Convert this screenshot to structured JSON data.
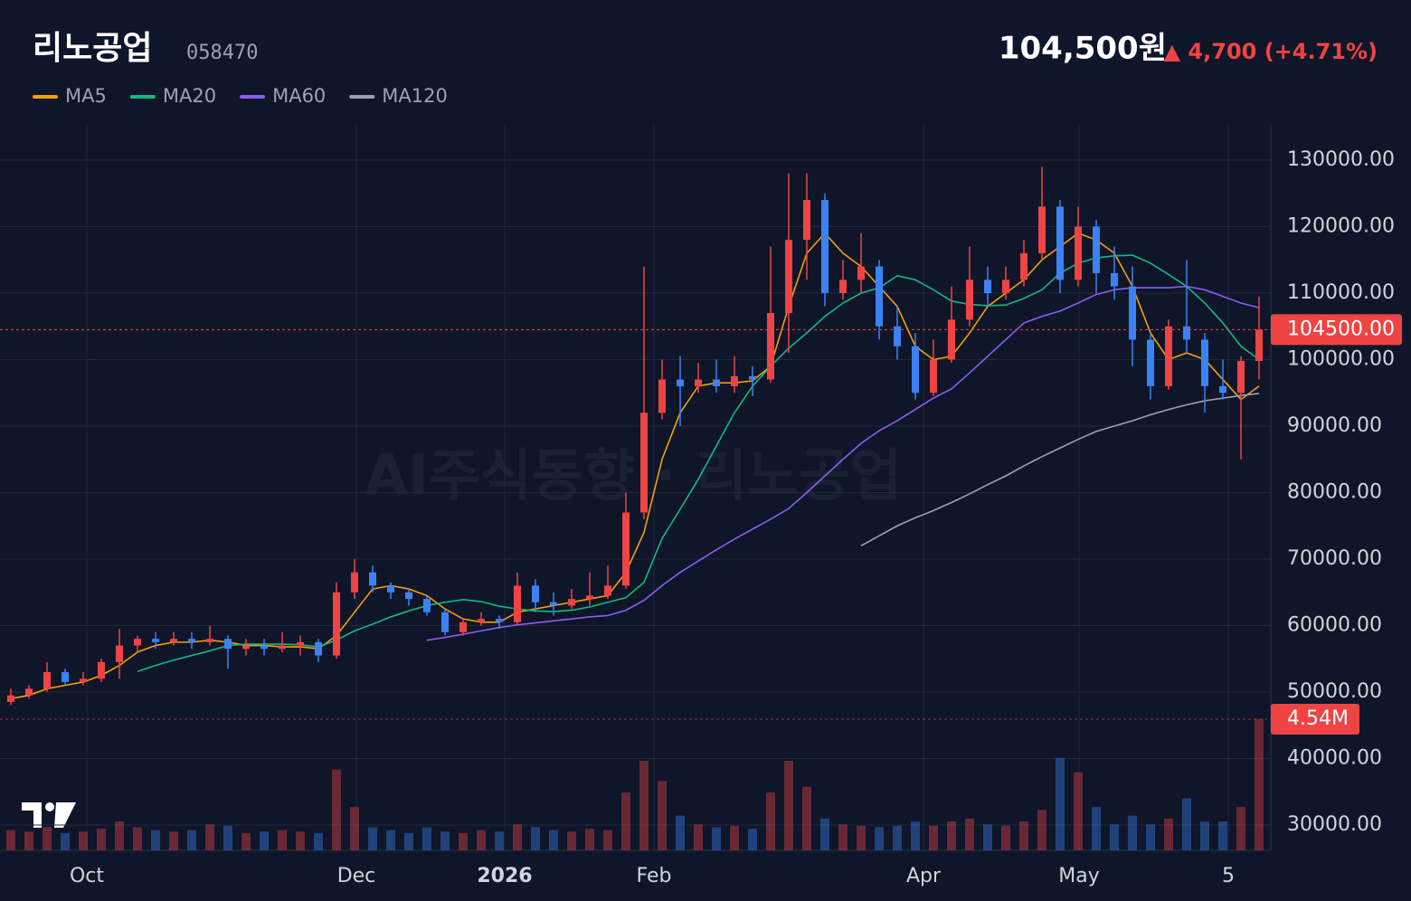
{
  "header": {
    "title": "리노공업",
    "code": "058470",
    "price": "104,500원",
    "change": "▲ 4,700 (+4.71%)"
  },
  "watermark": "AI주식동향 · 리노공업",
  "chart_data": {
    "type": "candlestick",
    "up_color": "#ef4444",
    "down_color": "#3b82f6",
    "open": [
      48500,
      49500,
      50500,
      53000,
      51500,
      52000,
      54500,
      57000,
      58000,
      57500,
      58000,
      57500,
      58000,
      56500,
      57000,
      56500,
      57000,
      57500,
      55500,
      65000,
      68000,
      66000,
      65000,
      64000,
      62000,
      59000,
      60500,
      61000,
      60500,
      66000,
      63500,
      63000,
      64000,
      64500,
      66000,
      77000,
      92000,
      97000,
      96000,
      97000,
      96000,
      97500,
      97000,
      107000,
      118000,
      124000,
      110000,
      112000,
      114000,
      105000,
      102000,
      95000,
      100000,
      106000,
      112000,
      110000,
      112000,
      116000,
      123000,
      112000,
      120000,
      113000,
      111000,
      103000,
      96000,
      105000,
      103000,
      96000,
      95000,
      99800
    ],
    "high": [
      50500,
      51000,
      54500,
      53500,
      53000,
      55000,
      59500,
      58500,
      59000,
      59000,
      59000,
      60000,
      58500,
      58000,
      58000,
      59000,
      58500,
      58000,
      66500,
      70000,
      69000,
      66500,
      65500,
      64500,
      62500,
      61000,
      62000,
      61500,
      68000,
      67000,
      65000,
      65500,
      68000,
      69000,
      80000,
      114000,
      100000,
      100500,
      99500,
      100000,
      100500,
      99000,
      117000,
      128000,
      128000,
      125000,
      115000,
      119000,
      115000,
      108000,
      104000,
      103000,
      111000,
      117000,
      114000,
      114000,
      118000,
      129000,
      124000,
      123000,
      121000,
      117000,
      114000,
      104000,
      106000,
      115000,
      104000,
      100000,
      100500,
      109500
    ],
    "low": [
      48000,
      49000,
      50000,
      51000,
      51000,
      51500,
      52000,
      56000,
      56500,
      57000,
      56500,
      57000,
      53500,
      55500,
      55500,
      56000,
      55500,
      54500,
      55000,
      64000,
      65000,
      64000,
      63000,
      61500,
      58500,
      58500,
      60000,
      59500,
      60000,
      62000,
      61500,
      62500,
      63000,
      64000,
      65500,
      76000,
      91000,
      90000,
      95000,
      95000,
      95000,
      94500,
      96500,
      101000,
      112000,
      108000,
      109000,
      110000,
      103000,
      100000,
      94000,
      94500,
      99500,
      105000,
      108000,
      109000,
      111000,
      115000,
      110000,
      111000,
      110000,
      109000,
      99000,
      94000,
      95500,
      101000,
      92000,
      94000,
      85000,
      97000
    ],
    "close": [
      49500,
      50500,
      53000,
      51500,
      52000,
      54500,
      57000,
      58000,
      57500,
      58000,
      57500,
      58000,
      56500,
      57000,
      56500,
      57000,
      57500,
      55500,
      65000,
      68000,
      66000,
      65000,
      64000,
      62000,
      59000,
      60500,
      61000,
      60500,
      66000,
      63500,
      63000,
      64000,
      64500,
      66000,
      77000,
      92000,
      97000,
      96000,
      97000,
      96000,
      97500,
      97000,
      107000,
      118000,
      124000,
      110000,
      112000,
      114000,
      105000,
      102000,
      95000,
      100000,
      106000,
      112000,
      110000,
      112000,
      116000,
      123000,
      112000,
      120000,
      113000,
      111000,
      103000,
      96000,
      105000,
      103000,
      96000,
      95000,
      99800,
      104500
    ],
    "volume": [
      700000,
      650000,
      800000,
      600000,
      650000,
      750000,
      1000000,
      800000,
      700000,
      650000,
      700000,
      900000,
      850000,
      600000,
      650000,
      700000,
      650000,
      600000,
      2800000,
      1500000,
      800000,
      700000,
      600000,
      800000,
      650000,
      600000,
      700000,
      650000,
      900000,
      800000,
      700000,
      650000,
      750000,
      700000,
      2000000,
      3100000,
      2400000,
      1200000,
      900000,
      800000,
      850000,
      750000,
      2000000,
      3100000,
      2200000,
      1100000,
      900000,
      850000,
      800000,
      850000,
      1000000,
      850000,
      1000000,
      1100000,
      900000,
      850000,
      1000000,
      1400000,
      3200000,
      2700000,
      1500000,
      900000,
      1200000,
      900000,
      1100000,
      1800000,
      1000000,
      1000000,
      1500000,
      4540000
    ],
    "series": [
      {
        "name": "MA5",
        "color": "#f59e0b",
        "values": [
          49000,
          49500,
          50500,
          51000,
          51500,
          52500,
          54000,
          56000,
          57000,
          57500,
          57500,
          57800,
          57500,
          57000,
          57000,
          56800,
          56800,
          56500,
          58500,
          62000,
          65500,
          66000,
          65500,
          64500,
          62500,
          61000,
          60500,
          60500,
          62000,
          62500,
          63000,
          63500,
          64000,
          64500,
          68000,
          74000,
          85000,
          92000,
          96000,
          96500,
          96500,
          96800,
          99000,
          108000,
          116000,
          119000,
          116000,
          114000,
          111000,
          108000,
          102000,
          100000,
          100500,
          104000,
          108000,
          110000,
          112000,
          115000,
          117000,
          119000,
          118000,
          116000,
          111000,
          104000,
          100000,
          101000,
          100000,
          97000,
          94000,
          96000
        ]
      },
      {
        "name": "MA20",
        "color": "#10b981",
        "values": [
          null,
          null,
          null,
          null,
          null,
          null,
          null,
          53100,
          54000,
          54800,
          55500,
          56200,
          57000,
          57200,
          57200,
          57200,
          57100,
          56800,
          57800,
          59200,
          60200,
          61300,
          62200,
          63000,
          63500,
          63900,
          63600,
          62900,
          62500,
          62200,
          62100,
          62300,
          62800,
          63500,
          64200,
          66500,
          73100,
          77500,
          82000,
          87000,
          92000,
          96000,
          99000,
          101700,
          104000,
          106500,
          108500,
          110000,
          110800,
          112600,
          112000,
          110500,
          108800,
          108300,
          108100,
          108200,
          109200,
          110500,
          113000,
          114500,
          115300,
          115600,
          115700,
          114500,
          112800,
          111000,
          108500,
          105500,
          102000,
          100000
        ]
      },
      {
        "name": "MA60",
        "color": "#8b5cf6",
        "values": [
          null,
          null,
          null,
          null,
          null,
          null,
          null,
          null,
          null,
          null,
          null,
          null,
          null,
          null,
          null,
          null,
          null,
          null,
          null,
          null,
          null,
          null,
          null,
          57800,
          58200,
          58700,
          59200,
          59700,
          60100,
          60400,
          60700,
          61000,
          61300,
          61500,
          62300,
          63800,
          66000,
          68000,
          69700,
          71400,
          73000,
          74500,
          76000,
          77600,
          80000,
          82500,
          85000,
          87400,
          89300,
          90800,
          92500,
          94200,
          95600,
          98000,
          100500,
          103000,
          105500,
          106500,
          107300,
          108500,
          109800,
          110500,
          110800,
          110800,
          110800,
          111000,
          110500,
          109500,
          108500,
          107800
        ]
      },
      {
        "name": "MA120",
        "color": "#9ca3af",
        "values": [
          null,
          null,
          null,
          null,
          null,
          null,
          null,
          null,
          null,
          null,
          null,
          null,
          null,
          null,
          null,
          null,
          null,
          null,
          null,
          null,
          null,
          null,
          null,
          null,
          null,
          null,
          null,
          null,
          null,
          null,
          null,
          null,
          null,
          null,
          null,
          null,
          null,
          null,
          null,
          null,
          null,
          null,
          null,
          null,
          null,
          null,
          null,
          72000,
          73500,
          75000,
          76200,
          77300,
          78500,
          79800,
          81200,
          82500,
          84000,
          85400,
          86700,
          88000,
          89200,
          90000,
          90800,
          91700,
          92500,
          93200,
          93800,
          94200,
          94600,
          94900
        ]
      }
    ],
    "ylim": [
      26190,
      135440
    ],
    "yticks": [
      {
        "value": 30000,
        "label": "30000.00"
      },
      {
        "value": 40000,
        "label": "40000.00"
      },
      {
        "value": 50000,
        "label": "50000.00"
      },
      {
        "value": 60000,
        "label": "60000.00"
      },
      {
        "value": 70000,
        "label": "70000.00"
      },
      {
        "value": 80000,
        "label": "80000.00"
      },
      {
        "value": 90000,
        "label": "90000.00"
      },
      {
        "value": 100000,
        "label": "100000.00"
      },
      {
        "value": 110000,
        "label": "110000.00"
      },
      {
        "value": 120000,
        "label": "120000.00"
      },
      {
        "value": 130000,
        "label": "130000.00"
      }
    ],
    "volume_ylim": [
      0,
      4540000
    ],
    "xticks": [
      {
        "value": 4.2,
        "label": "Oct"
      },
      {
        "value": 19.1,
        "label": "Dec"
      },
      {
        "value": 27.3,
        "label": "2026"
      },
      {
        "value": 35.55,
        "label": "Feb"
      },
      {
        "value": 50.45,
        "label": "Apr"
      },
      {
        "value": 59.05,
        "label": "May"
      },
      {
        "value": 67.3,
        "label": "5"
      }
    ],
    "price_line": {
      "value": 104500,
      "label": "104500.00"
    },
    "volume_line": {
      "value": 4540000,
      "label": "4.54M"
    },
    "grid": true
  }
}
